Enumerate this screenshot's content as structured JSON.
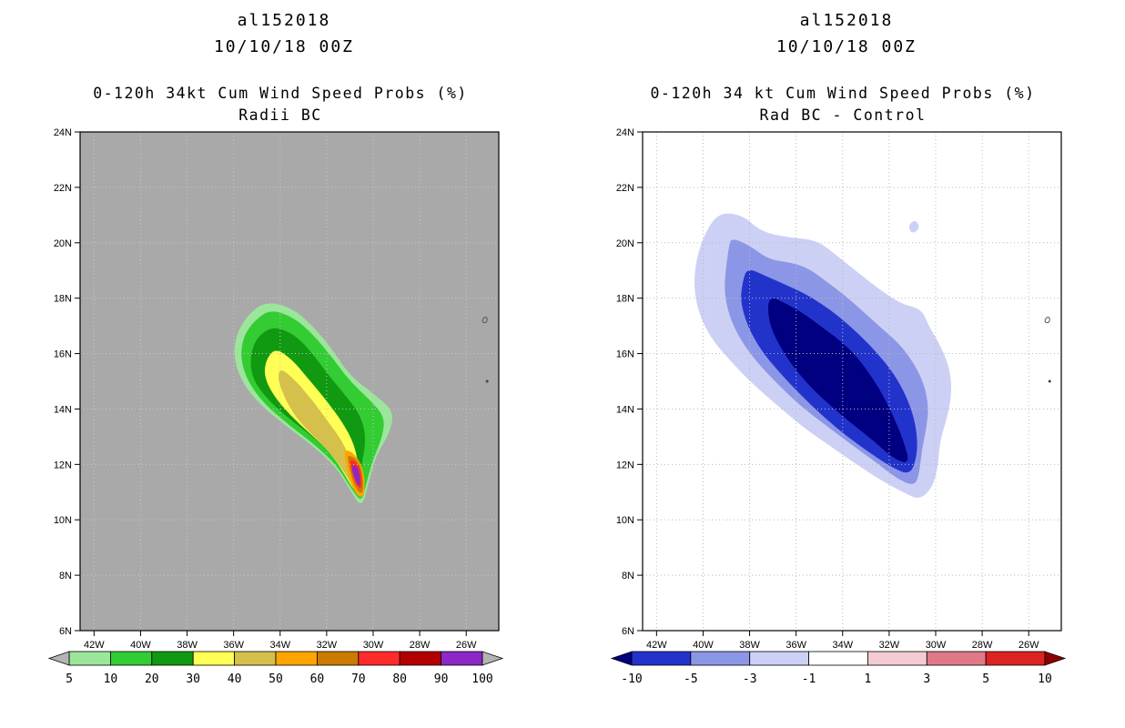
{
  "figure": {
    "bg": "#ffffff"
  },
  "chart_data": [
    {
      "type": "filled_contour_map",
      "storm_id": "al152018",
      "datetime": "10/10/18 00Z",
      "title": "0-120h 34kt Cum Wind Speed Probs (%)",
      "subtitle": "Radii BC",
      "units": "%",
      "map_bg": "#a9a9a9",
      "grid_color": "#c9c9c9",
      "lon_range": [
        -42.6,
        -24.6
      ],
      "lat_range": [
        6,
        24
      ],
      "lon_ticks": [
        "42W",
        "40W",
        "38W",
        "36W",
        "34W",
        "32W",
        "30W",
        "28W",
        "26W"
      ],
      "lat_ticks": [
        "24N",
        "22N",
        "20N",
        "18N",
        "16N",
        "14N",
        "12N",
        "10N",
        "8N",
        "6N"
      ],
      "colorbar": {
        "labels": [
          "5",
          "10",
          "20",
          "30",
          "40",
          "50",
          "60",
          "70",
          "80",
          "90",
          "100"
        ],
        "segment_colors": [
          "#9be69b",
          "#33cc33",
          "#119911",
          "#ffff55",
          "#d4c04a",
          "#ffa500",
          "#cc7a00",
          "#ff2a2a",
          "#b30000",
          "#8c28c8"
        ],
        "arrow_left_color": "#b4b4b4",
        "arrow_right_color": "#b4b4b4"
      },
      "contours": [
        {
          "level": 5,
          "color": "#9be69b",
          "points": [
            [
              -34.5,
              17.9
            ],
            [
              -33.4,
              17.6
            ],
            [
              -32.6,
              17.0
            ],
            [
              -31.8,
              16.2
            ],
            [
              -31.0,
              15.2
            ],
            [
              -29.9,
              14.5
            ],
            [
              -29.1,
              13.9
            ],
            [
              -29.3,
              13.1
            ],
            [
              -29.9,
              12.3
            ],
            [
              -30.2,
              11.3
            ],
            [
              -30.5,
              10.4
            ],
            [
              -31.0,
              11.1
            ],
            [
              -31.6,
              11.9
            ],
            [
              -32.5,
              12.6
            ],
            [
              -33.6,
              13.3
            ],
            [
              -34.8,
              14.1
            ],
            [
              -35.6,
              14.9
            ],
            [
              -36.0,
              15.8
            ],
            [
              -35.9,
              16.7
            ],
            [
              -35.3,
              17.5
            ]
          ]
        },
        {
          "level": 10,
          "color": "#33cc33",
          "points": [
            [
              -34.4,
              17.6
            ],
            [
              -33.4,
              17.3
            ],
            [
              -32.6,
              16.7
            ],
            [
              -31.8,
              15.9
            ],
            [
              -31.0,
              15.0
            ],
            [
              -30.1,
              14.3
            ],
            [
              -29.5,
              13.7
            ],
            [
              -29.6,
              13.0
            ],
            [
              -30.0,
              12.2
            ],
            [
              -30.3,
              11.3
            ],
            [
              -30.5,
              10.6
            ],
            [
              -31.0,
              11.2
            ],
            [
              -31.6,
              12.0
            ],
            [
              -32.5,
              12.7
            ],
            [
              -33.6,
              13.4
            ],
            [
              -34.7,
              14.2
            ],
            [
              -35.4,
              15.0
            ],
            [
              -35.7,
              15.8
            ],
            [
              -35.6,
              16.6
            ],
            [
              -35.1,
              17.2
            ]
          ]
        },
        {
          "level": 20,
          "color": "#119911",
          "points": [
            [
              -34.3,
              17.0
            ],
            [
              -33.4,
              16.7
            ],
            [
              -32.7,
              16.1
            ],
            [
              -31.9,
              15.2
            ],
            [
              -31.1,
              14.4
            ],
            [
              -30.5,
              13.7
            ],
            [
              -30.3,
              12.9
            ],
            [
              -30.5,
              12.0
            ],
            [
              -30.6,
              11.0
            ],
            [
              -31.1,
              11.6
            ],
            [
              -31.7,
              12.3
            ],
            [
              -32.6,
              13.0
            ],
            [
              -33.7,
              13.7
            ],
            [
              -34.6,
              14.4
            ],
            [
              -35.2,
              15.1
            ],
            [
              -35.3,
              15.9
            ],
            [
              -35.0,
              16.6
            ]
          ]
        },
        {
          "level": 30,
          "color": "#ffff55",
          "points": [
            [
              -34.2,
              16.2
            ],
            [
              -33.5,
              15.8
            ],
            [
              -32.8,
              15.1
            ],
            [
              -32.0,
              14.3
            ],
            [
              -31.3,
              13.5
            ],
            [
              -30.8,
              12.7
            ],
            [
              -30.6,
              11.8
            ],
            [
              -30.7,
              10.9
            ],
            [
              -31.2,
              11.6
            ],
            [
              -31.8,
              12.4
            ],
            [
              -32.7,
              13.1
            ],
            [
              -33.6,
              13.8
            ],
            [
              -34.3,
              14.5
            ],
            [
              -34.7,
              15.2
            ],
            [
              -34.6,
              15.8
            ]
          ]
        },
        {
          "level": 40,
          "color": "#d4c04a",
          "points": [
            [
              -34.0,
              15.5
            ],
            [
              -33.3,
              15.0
            ],
            [
              -32.6,
              14.3
            ],
            [
              -31.9,
              13.5
            ],
            [
              -31.3,
              12.8
            ],
            [
              -30.9,
              12.0
            ],
            [
              -30.8,
              11.1
            ],
            [
              -31.3,
              11.8
            ],
            [
              -31.9,
              12.5
            ],
            [
              -32.8,
              13.2
            ],
            [
              -33.5,
              13.9
            ],
            [
              -33.9,
              14.6
            ],
            [
              -34.1,
              15.1
            ]
          ]
        },
        {
          "level": 50,
          "color": "#ffa500",
          "points": [
            [
              -31.25,
              12.55
            ],
            [
              -30.8,
              12.4
            ],
            [
              -30.4,
              11.8
            ],
            [
              -30.35,
              11.0
            ],
            [
              -30.55,
              10.75
            ],
            [
              -30.9,
              11.15
            ],
            [
              -31.1,
              11.7
            ],
            [
              -31.2,
              12.2
            ]
          ]
        },
        {
          "level": 60,
          "color": "#cc7a00",
          "points": [
            [
              -31.1,
              12.35
            ],
            [
              -30.7,
              12.2
            ],
            [
              -30.45,
              11.7
            ],
            [
              -30.42,
              11.0
            ],
            [
              -30.6,
              10.95
            ],
            [
              -30.85,
              11.3
            ],
            [
              -31.0,
              11.8
            ],
            [
              -31.08,
              12.15
            ]
          ]
        },
        {
          "level": 70,
          "color": "#ff2a2a",
          "points": [
            [
              -31.0,
              12.2
            ],
            [
              -30.65,
              12.05
            ],
            [
              -30.5,
              11.6
            ],
            [
              -30.5,
              11.05
            ],
            [
              -30.75,
              11.3
            ],
            [
              -30.9,
              11.7
            ],
            [
              -30.98,
              12.0
            ]
          ]
        },
        {
          "level": 90,
          "color": "#8c28c8",
          "points": [
            [
              -30.9,
              12.0
            ],
            [
              -30.65,
              11.9
            ],
            [
              -30.55,
              11.45
            ],
            [
              -30.6,
              11.15
            ],
            [
              -30.8,
              11.5
            ],
            [
              -30.9,
              11.8
            ]
          ]
        }
      ],
      "map_marks": [
        {
          "kind": "island-outline",
          "lon": -25.3,
          "lat": 17.2
        },
        {
          "kind": "island-dot",
          "lon": -25.1,
          "lat": 15.0
        }
      ]
    },
    {
      "type": "filled_contour_map",
      "storm_id": "al152018",
      "datetime": "10/10/18 00Z",
      "title": "0-120h 34 kt Cum Wind Speed Probs (%)",
      "subtitle": "Rad BC - Control",
      "units": "%",
      "map_bg": "#ffffff",
      "grid_color": "#b9b9b9",
      "lon_range": [
        -42.6,
        -24.6
      ],
      "lat_range": [
        6,
        24
      ],
      "lon_ticks": [
        "42W",
        "40W",
        "38W",
        "36W",
        "34W",
        "32W",
        "30W",
        "28W",
        "26W"
      ],
      "lat_ticks": [
        "24N",
        "22N",
        "20N",
        "18N",
        "16N",
        "14N",
        "12N",
        "10N",
        "8N",
        "6N"
      ],
      "colorbar": {
        "labels": [
          "-10",
          "-5",
          "-3",
          "-1",
          "1",
          "3",
          "5",
          "10"
        ],
        "segment_colors": [
          "#2233cc",
          "#8c96e6",
          "#ccd0f5",
          "#ffffff",
          "#f2ccd2",
          "#e07888",
          "#dd2222"
        ],
        "arrow_left_color": "#000080",
        "arrow_right_color": "#8b0000"
      },
      "contours": [
        {
          "level": -1,
          "color": "#ccd0f5",
          "points": [
            [
              -39.3,
              21.1
            ],
            [
              -38.3,
              21.0
            ],
            [
              -37.5,
              20.4
            ],
            [
              -36.4,
              20.2
            ],
            [
              -35.1,
              20.1
            ],
            [
              -34.2,
              19.5
            ],
            [
              -33.3,
              18.9
            ],
            [
              -32.4,
              18.3
            ],
            [
              -31.5,
              17.8
            ],
            [
              -30.6,
              17.6
            ],
            [
              -30.3,
              17.0
            ],
            [
              -29.8,
              16.3
            ],
            [
              -29.4,
              15.5
            ],
            [
              -29.3,
              14.6
            ],
            [
              -29.5,
              13.7
            ],
            [
              -29.8,
              12.9
            ],
            [
              -29.9,
              12.0
            ],
            [
              -30.1,
              11.2
            ],
            [
              -30.7,
              10.7
            ],
            [
              -31.4,
              11.0
            ],
            [
              -32.3,
              11.4
            ],
            [
              -33.4,
              12.0
            ],
            [
              -34.6,
              12.7
            ],
            [
              -35.8,
              13.4
            ],
            [
              -36.9,
              14.2
            ],
            [
              -38.0,
              15.0
            ],
            [
              -38.9,
              15.8
            ],
            [
              -39.7,
              16.6
            ],
            [
              -40.2,
              17.5
            ],
            [
              -40.4,
              18.4
            ],
            [
              -40.3,
              19.4
            ],
            [
              -39.9,
              20.4
            ]
          ]
        },
        {
          "level": -1,
          "color": "#ccd0f5",
          "points": [
            [
              -31.2,
              20.6
            ],
            [
              -30.9,
              20.85
            ],
            [
              -30.65,
              20.55
            ],
            [
              -31.0,
              20.3
            ]
          ]
        },
        {
          "level": -3,
          "color": "#8c96e6",
          "points": [
            [
              -38.8,
              20.2
            ],
            [
              -38.0,
              19.9
            ],
            [
              -37.2,
              19.4
            ],
            [
              -36.3,
              19.3
            ],
            [
              -35.5,
              19.1
            ],
            [
              -34.7,
              18.6
            ],
            [
              -33.9,
              18.1
            ],
            [
              -33.1,
              17.5
            ],
            [
              -32.3,
              16.9
            ],
            [
              -31.5,
              16.3
            ],
            [
              -30.9,
              15.6
            ],
            [
              -30.5,
              14.9
            ],
            [
              -30.3,
              14.1
            ],
            [
              -30.4,
              13.3
            ],
            [
              -30.6,
              12.5
            ],
            [
              -30.7,
              11.7
            ],
            [
              -30.9,
              11.2
            ],
            [
              -31.7,
              11.5
            ],
            [
              -32.6,
              12.1
            ],
            [
              -33.6,
              12.7
            ],
            [
              -34.7,
              13.4
            ],
            [
              -35.8,
              14.1
            ],
            [
              -36.8,
              14.9
            ],
            [
              -37.7,
              15.7
            ],
            [
              -38.4,
              16.5
            ],
            [
              -38.9,
              17.4
            ],
            [
              -39.1,
              18.3
            ],
            [
              -39.0,
              19.2
            ],
            [
              -38.9,
              19.8
            ]
          ]
        },
        {
          "level": -5,
          "color": "#2233cc",
          "points": [
            [
              -38.1,
              19.1
            ],
            [
              -37.3,
              18.8
            ],
            [
              -36.5,
              18.5
            ],
            [
              -35.7,
              18.2
            ],
            [
              -34.9,
              17.8
            ],
            [
              -34.1,
              17.3
            ],
            [
              -33.3,
              16.7
            ],
            [
              -32.6,
              16.1
            ],
            [
              -31.9,
              15.4
            ],
            [
              -31.4,
              14.7
            ],
            [
              -31.0,
              13.9
            ],
            [
              -30.8,
              13.1
            ],
            [
              -30.8,
              12.3
            ],
            [
              -31.1,
              11.6
            ],
            [
              -31.9,
              11.9
            ],
            [
              -32.8,
              12.4
            ],
            [
              -33.8,
              13.0
            ],
            [
              -34.8,
              13.7
            ],
            [
              -35.8,
              14.5
            ],
            [
              -36.7,
              15.3
            ],
            [
              -37.5,
              16.1
            ],
            [
              -38.1,
              17.0
            ],
            [
              -38.4,
              17.9
            ],
            [
              -38.3,
              18.6
            ]
          ]
        },
        {
          "level": -10,
          "color": "#000080",
          "points": [
            [
              -37.2,
              18.1
            ],
            [
              -36.4,
              17.8
            ],
            [
              -35.6,
              17.4
            ],
            [
              -34.8,
              16.9
            ],
            [
              -34.0,
              16.4
            ],
            [
              -33.3,
              15.8
            ],
            [
              -32.7,
              15.1
            ],
            [
              -32.2,
              14.4
            ],
            [
              -31.8,
              13.7
            ],
            [
              -31.4,
              12.9
            ],
            [
              -31.1,
              12.0
            ],
            [
              -31.8,
              12.2
            ],
            [
              -32.6,
              12.8
            ],
            [
              -33.5,
              13.4
            ],
            [
              -34.5,
              14.1
            ],
            [
              -35.4,
              14.8
            ],
            [
              -36.2,
              15.6
            ],
            [
              -36.8,
              16.4
            ],
            [
              -37.2,
              17.2
            ]
          ]
        }
      ],
      "map_marks": [
        {
          "kind": "island-outline",
          "lon": -25.3,
          "lat": 17.2
        },
        {
          "kind": "island-dot",
          "lon": -25.1,
          "lat": 15.0
        }
      ]
    }
  ]
}
